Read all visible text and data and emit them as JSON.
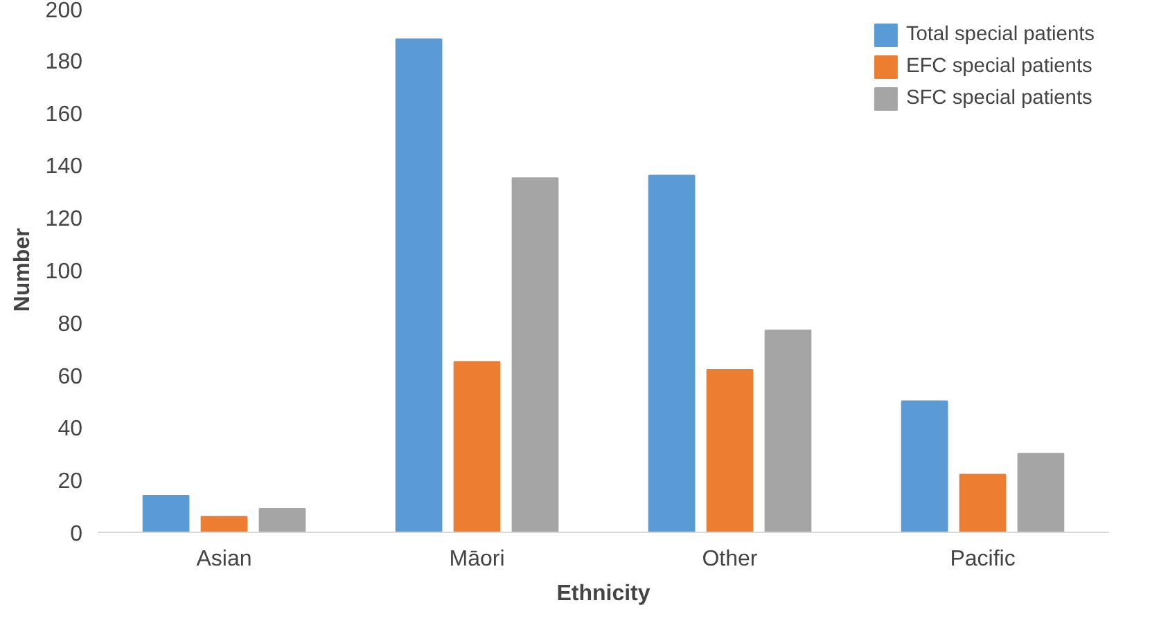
{
  "chart_data": {
    "type": "bar",
    "xlabel": "Ethnicity",
    "ylabel": "Number",
    "categories": [
      "Asian",
      "Māori",
      "Other",
      "Pacific"
    ],
    "series": [
      {
        "name": "Total special patients",
        "color": "#5b9bd5",
        "values": [
          14,
          188,
          136,
          50
        ]
      },
      {
        "name": "EFC special patients",
        "color": "#ed7d31",
        "values": [
          6,
          65,
          62,
          22
        ]
      },
      {
        "name": "SFC special patients",
        "color": "#a5a5a5",
        "values": [
          9,
          135,
          77,
          30
        ]
      }
    ],
    "ylim": [
      0,
      200
    ],
    "yticks": [
      0,
      20,
      40,
      60,
      80,
      100,
      120,
      140,
      160,
      180,
      200
    ],
    "grid": false,
    "legend": "top right"
  }
}
